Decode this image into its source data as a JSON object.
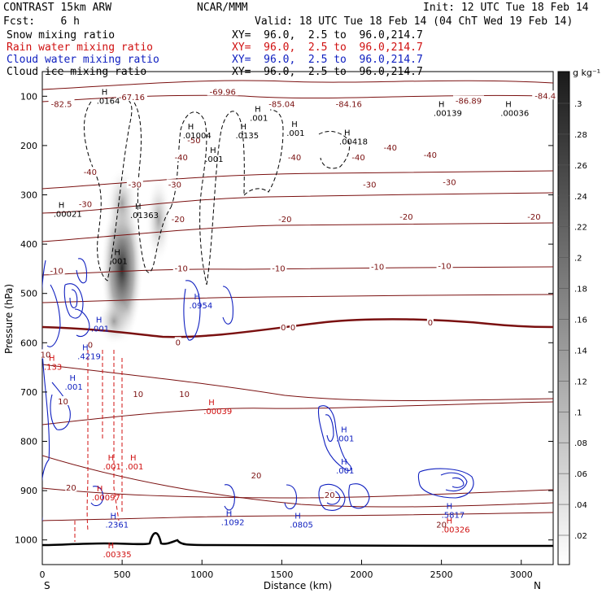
{
  "header": {
    "model": "CONTRAST 15km ARW",
    "org": "NCAR/MMM",
    "init": "Init: 12 UTC Tue 18 Feb 14",
    "fcst": "Fcst:    6 h",
    "valid": "Valid: 18 UTC Tue 18 Feb 14 (04 ChT Wed 19 Feb 14)"
  },
  "fields": [
    {
      "label": "Snow mixing ratio",
      "xy": "XY=  96.0,  2.5 to  96.0,214.7",
      "color": "#000000"
    },
    {
      "label": "Rain water mixing ratio",
      "xy": "XY=  96.0,  2.5 to  96.0,214.7",
      "color": "#d01010"
    },
    {
      "label": "Cloud water mixing ratio",
      "xy": "XY=  96.0,  2.5 to  96.0,214.7",
      "color": "#1020c0"
    },
    {
      "label": "Cloud ice mixing ratio",
      "xy": "XY=  96.0,  2.5 to  96.0,214.7",
      "color": "#000000"
    }
  ],
  "chart_data": {
    "type": "cross-section",
    "xlabel": "Distance (km)",
    "ylabel": "Pressure (hPa)",
    "xlim": [
      0,
      3200
    ],
    "ylim": [
      1050,
      50
    ],
    "x_ticks": [
      0,
      500,
      1000,
      1500,
      2000,
      2500,
      3000
    ],
    "y_ticks": [
      100,
      200,
      300,
      400,
      500,
      600,
      700,
      800,
      900,
      1000
    ],
    "x_ends": {
      "left": "S",
      "right": "N"
    },
    "colorbar": {
      "unit": "g kg⁻¹",
      "ticks": [
        ".3",
        ".28",
        ".26",
        ".24",
        ".22",
        ".2",
        ".18",
        ".16",
        ".14",
        ".12",
        ".1",
        ".08",
        ".06",
        ".04",
        ".02"
      ]
    },
    "temperature_labels": [
      {
        "x": 560,
        "p": 103,
        "t": "-67.16"
      },
      {
        "x": 1130,
        "p": 92,
        "t": "-69.96"
      },
      {
        "x": 120,
        "p": 117,
        "t": "-82.5"
      },
      {
        "x": 1500,
        "p": 117,
        "t": "-85.04"
      },
      {
        "x": 1920,
        "p": 117,
        "t": "-84.16"
      },
      {
        "x": 2670,
        "p": 110,
        "t": "-86.89"
      },
      {
        "x": 3150,
        "p": 100,
        "t": "-84.4"
      },
      {
        "x": 950,
        "p": 190,
        "t": "-50"
      },
      {
        "x": 2180,
        "p": 205,
        "t": "-40"
      },
      {
        "x": 870,
        "p": 225,
        "t": "-40"
      },
      {
        "x": 1580,
        "p": 225,
        "t": "-40"
      },
      {
        "x": 1980,
        "p": 225,
        "t": "-40"
      },
      {
        "x": 2430,
        "p": 220,
        "t": "-40"
      },
      {
        "x": 300,
        "p": 255,
        "t": "-40"
      },
      {
        "x": 580,
        "p": 280,
        "t": "-30"
      },
      {
        "x": 830,
        "p": 280,
        "t": "-30"
      },
      {
        "x": 2050,
        "p": 280,
        "t": "-30"
      },
      {
        "x": 2550,
        "p": 275,
        "t": "-30"
      },
      {
        "x": 270,
        "p": 320,
        "t": "-30"
      },
      {
        "x": 850,
        "p": 350,
        "t": "-20"
      },
      {
        "x": 1520,
        "p": 350,
        "t": "-20"
      },
      {
        "x": 2280,
        "p": 345,
        "t": "-20"
      },
      {
        "x": 3080,
        "p": 345,
        "t": "-20"
      },
      {
        "x": 870,
        "p": 450,
        "t": "-10"
      },
      {
        "x": 1480,
        "p": 450,
        "t": "-10"
      },
      {
        "x": 2100,
        "p": 447,
        "t": "-10"
      },
      {
        "x": 2520,
        "p": 445,
        "t": "-10"
      },
      {
        "x": 90,
        "p": 455,
        "t": "-10"
      },
      {
        "x": 1510,
        "p": 570,
        "t": "0"
      },
      {
        "x": 1570,
        "p": 570,
        "t": "0"
      },
      {
        "x": 2430,
        "p": 560,
        "t": "0"
      },
      {
        "x": 850,
        "p": 600,
        "t": "0"
      },
      {
        "x": 300,
        "p": 605,
        "t": "0"
      },
      {
        "x": 10,
        "p": 625,
        "t": "10"
      },
      {
        "x": 600,
        "p": 705,
        "t": "10"
      },
      {
        "x": 890,
        "p": 705,
        "t": "10"
      },
      {
        "x": 130,
        "p": 720,
        "t": "10"
      },
      {
        "x": 1340,
        "p": 870,
        "t": "20"
      },
      {
        "x": 1800,
        "p": 910,
        "t": "20"
      },
      {
        "x": 180,
        "p": 895,
        "t": "20"
      },
      {
        "x": 2500,
        "p": 970,
        "t": "20"
      }
    ],
    "max_labels": [
      {
        "x": 340,
        "p": 110,
        "t": ".0164",
        "color": "#000000"
      },
      {
        "x": 1300,
        "p": 145,
        "t": ".001",
        "color": "#000000"
      },
      {
        "x": 2450,
        "p": 135,
        "t": ".00139",
        "color": "#000000"
      },
      {
        "x": 2870,
        "p": 135,
        "t": ".00036",
        "color": "#000000"
      },
      {
        "x": 880,
        "p": 180,
        "t": ".01004",
        "color": "#000000"
      },
      {
        "x": 1210,
        "p": 180,
        "t": ".0135",
        "color": "#000000"
      },
      {
        "x": 1530,
        "p": 175,
        "t": ".001",
        "color": "#000000"
      },
      {
        "x": 1860,
        "p": 193,
        "t": ".00418",
        "color": "#000000"
      },
      {
        "x": 1020,
        "p": 228,
        "t": ".001",
        "color": "#000000"
      },
      {
        "x": 70,
        "p": 340,
        "t": ".00021",
        "color": "#000000"
      },
      {
        "x": 550,
        "p": 342,
        "t": ".01363",
        "color": "#000000"
      },
      {
        "x": 420,
        "p": 435,
        "t": ".001",
        "color": "#000000"
      },
      {
        "x": 920,
        "p": 525,
        "t": ".0954",
        "color": "#1020c0"
      },
      {
        "x": 305,
        "p": 572,
        "t": ".001",
        "color": "#1020c0"
      },
      {
        "x": 220,
        "p": 628,
        "t": ".4219",
        "color": "#1020c0"
      },
      {
        "x": 140,
        "p": 690,
        "t": ".001",
        "color": "#1020c0"
      },
      {
        "x": 0,
        "p": 650,
        "t": ".133",
        "color": "#d01010"
      },
      {
        "x": 1010,
        "p": 740,
        "t": ".00039",
        "color": "#d01010"
      },
      {
        "x": 1840,
        "p": 795,
        "t": ".001",
        "color": "#1020c0"
      },
      {
        "x": 1840,
        "p": 860,
        "t": ".001",
        "color": "#1020c0"
      },
      {
        "x": 380,
        "p": 852,
        "t": ".001",
        "color": "#d01010"
      },
      {
        "x": 520,
        "p": 852,
        "t": ".001",
        "color": "#d01010"
      },
      {
        "x": 310,
        "p": 915,
        "t": ".00097",
        "color": "#d01010"
      },
      {
        "x": 395,
        "p": 970,
        "t": ".2361",
        "color": "#1020c0"
      },
      {
        "x": 1120,
        "p": 965,
        "t": ".1092",
        "color": "#1020c0"
      },
      {
        "x": 1550,
        "p": 970,
        "t": ".0805",
        "color": "#1020c0"
      },
      {
        "x": 2500,
        "p": 950,
        "t": ".5817",
        "color": "#1020c0"
      },
      {
        "x": 2500,
        "p": 980,
        "t": ".00326",
        "color": "#d01010"
      },
      {
        "x": 380,
        "p": 1030,
        "t": ".00335",
        "color": "#d01010"
      }
    ]
  }
}
